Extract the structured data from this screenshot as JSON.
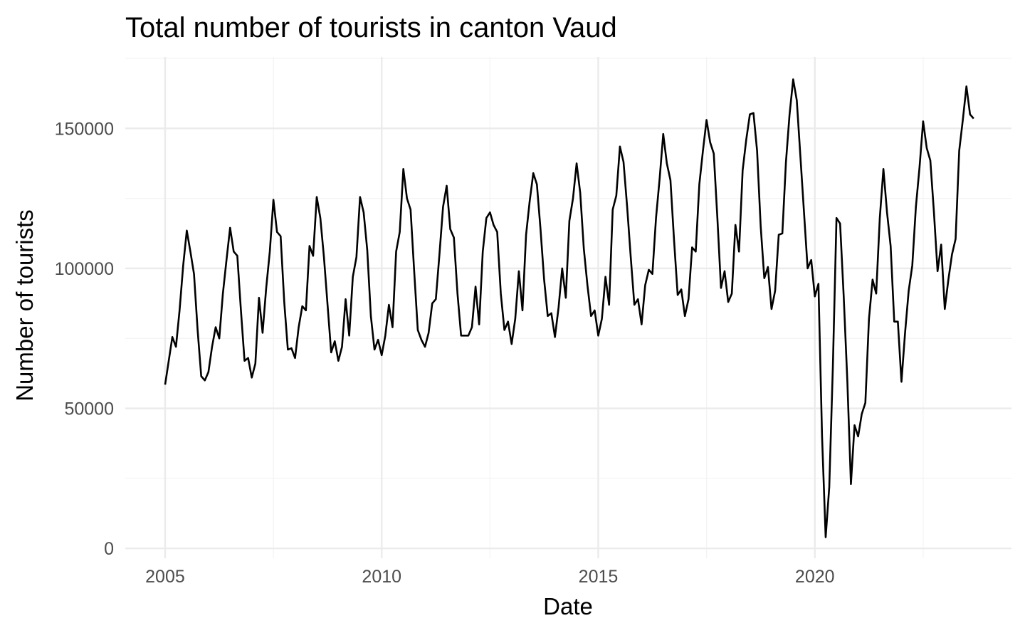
{
  "chart_data": {
    "type": "line",
    "title": "Total number of tourists in canton Vaud",
    "xlabel": "Date",
    "ylabel": "Number of tourists",
    "xlim": [
      2004.08,
      2024.54
    ],
    "ylim": [
      -3500,
      175500
    ],
    "x_ticks": [
      2005,
      2010,
      2015,
      2020
    ],
    "x_tick_labels": [
      "2005",
      "2010",
      "2015",
      "2020"
    ],
    "y_ticks": [
      0,
      50000,
      100000,
      150000
    ],
    "y_tick_labels": [
      "0",
      "50000",
      "100000",
      "150000"
    ],
    "grid": true,
    "legend": "none",
    "x_start": "2005-01",
    "x_frequency": "monthly",
    "series": [
      {
        "color": "#000000",
        "values": [
          58500,
          67000,
          75500,
          72000,
          85000,
          101000,
          113500,
          106000,
          98000,
          78000,
          61500,
          60000,
          63000,
          72000,
          79000,
          75000,
          91000,
          103000,
          114500,
          106000,
          104500,
          85000,
          67000,
          68000,
          61000,
          66000,
          89500,
          77000,
          93000,
          106000,
          124500,
          113000,
          111500,
          88000,
          71000,
          71500,
          68000,
          79000,
          86500,
          85000,
          108000,
          104500,
          125500,
          118000,
          104000,
          87000,
          70000,
          74000,
          67000,
          72000,
          89000,
          76000,
          97000,
          104000,
          125500,
          120000,
          106500,
          83000,
          71000,
          74500,
          69000,
          76000,
          87000,
          79000,
          106000,
          113000,
          135500,
          125000,
          121000,
          99000,
          78000,
          74500,
          72000,
          77000,
          87500,
          89000,
          105000,
          122000,
          129500,
          114000,
          111000,
          91000,
          76000,
          76000,
          76000,
          79000,
          93500,
          80000,
          106000,
          118000,
          120000,
          115500,
          113000,
          91000,
          78000,
          81000,
          73000,
          82000,
          99000,
          85000,
          112000,
          124000,
          134000,
          130000,
          114000,
          96000,
          83000,
          84000,
          75500,
          86000,
          100000,
          89500,
          117000,
          125000,
          137500,
          127000,
          107000,
          94000,
          83000,
          85000,
          76000,
          82000,
          97000,
          87000,
          121000,
          126000,
          143500,
          138000,
          122000,
          104000,
          87000,
          89000,
          80000,
          94000,
          99500,
          98000,
          118000,
          132000,
          148000,
          137500,
          131500,
          110000,
          90500,
          92500,
          83000,
          89000,
          107500,
          106000,
          130000,
          142000,
          153000,
          145000,
          141000,
          118000,
          93000,
          99000,
          88000,
          91000,
          115500,
          106000,
          135000,
          146000,
          155000,
          155500,
          142000,
          115000,
          96500,
          100500,
          85500,
          92000,
          112000,
          112500,
          138000,
          155000,
          167500,
          160000,
          140000,
          120000,
          100000,
          103000,
          90000,
          94500,
          40000,
          4000,
          22000,
          65000,
          118000,
          116000,
          90000,
          60000,
          23000,
          44000,
          40000,
          48000,
          52000,
          82000,
          96000,
          91000,
          118000,
          135500,
          120000,
          108000,
          81000,
          81000,
          59500,
          77000,
          92000,
          101000,
          122000,
          136000,
          152500,
          143000,
          138500,
          120000,
          99000,
          108500,
          85500,
          96000,
          105000,
          110500,
          142000,
          153000,
          165000,
          155000,
          153500
        ]
      }
    ]
  }
}
